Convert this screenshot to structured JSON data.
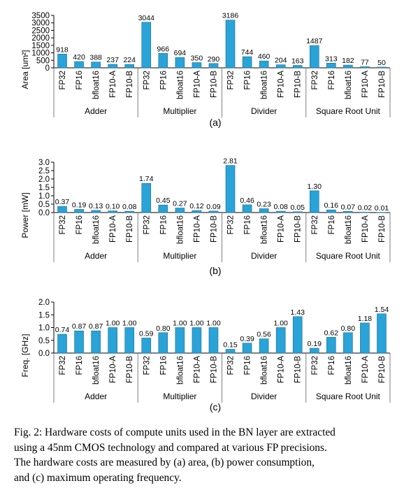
{
  "colors": {
    "bar": "#29a3d8",
    "bar_stroke": "#1a6f96",
    "axis": "#000000",
    "sep": "#7f7f7f"
  },
  "chart_data": [
    {
      "type": "bar",
      "panel_label": "(a)",
      "ylabel": "Area [um²]",
      "ylim": [
        0,
        3500
      ],
      "yticks": [
        0,
        500,
        1000,
        1500,
        2000,
        2500,
        3000,
        3500
      ],
      "groups": [
        "Adder",
        "Multiplier",
        "Divider",
        "Square Root Unit"
      ],
      "categories": [
        "FP32",
        "FP16",
        "bfloat16",
        "FP10-A",
        "FP10-B"
      ],
      "values": [
        [
          918,
          420,
          388,
          237,
          224
        ],
        [
          3044,
          966,
          694,
          350,
          290
        ],
        [
          3186,
          744,
          460,
          204,
          163
        ],
        [
          1487,
          313,
          182,
          77,
          50
        ]
      ],
      "labels": [
        [
          "918",
          "420",
          "388",
          "237",
          "224"
        ],
        [
          "3044",
          "966",
          "694",
          "350",
          "290"
        ],
        [
          "3186",
          "744",
          "460",
          "204",
          "163"
        ],
        [
          "1487",
          "313",
          "182",
          "77",
          "50"
        ]
      ]
    },
    {
      "type": "bar",
      "panel_label": "(b)",
      "ylabel": "Power [mW]",
      "ylim": [
        0,
        3.0
      ],
      "yticks": [
        "0.0",
        "0.5",
        "1.0",
        "1.5",
        "2.0",
        "2.5",
        "3.0"
      ],
      "groups": [
        "Adder",
        "Multiplier",
        "Divider",
        "Square Root Unit"
      ],
      "categories": [
        "FP32",
        "FP16",
        "bfloat16",
        "FP10-A",
        "FP10-B"
      ],
      "values": [
        [
          0.37,
          0.19,
          0.13,
          0.1,
          0.08
        ],
        [
          1.74,
          0.45,
          0.27,
          0.12,
          0.09
        ],
        [
          2.81,
          0.46,
          0.23,
          0.08,
          0.05
        ],
        [
          1.3,
          0.16,
          0.07,
          0.02,
          0.01
        ]
      ],
      "labels": [
        [
          "0.37",
          "0.19",
          "0.13",
          "0.10",
          "0.08"
        ],
        [
          "1.74",
          "0.45",
          "0.27",
          "0.12",
          "0.09"
        ],
        [
          "2.81",
          "0.46",
          "0.23",
          "0.08",
          "0.05"
        ],
        [
          "1.30",
          "0.16",
          "0.07",
          "0.02",
          "0.01"
        ]
      ]
    },
    {
      "type": "bar",
      "panel_label": "(c)",
      "ylabel": "Freq. [GHz]",
      "ylim": [
        0,
        2.0
      ],
      "yticks": [
        "0.0",
        "0.5",
        "1.0",
        "1.5",
        "2.0"
      ],
      "groups": [
        "Adder",
        "Multiplier",
        "Divider",
        "Square Root Unit"
      ],
      "categories": [
        "FP32",
        "FP16",
        "bfloat16",
        "FP10-A",
        "FP10-B"
      ],
      "values": [
        [
          0.74,
          0.87,
          0.87,
          1.0,
          1.0
        ],
        [
          0.59,
          0.8,
          1.0,
          1.0,
          1.0
        ],
        [
          0.15,
          0.39,
          0.56,
          1.0,
          1.43
        ],
        [
          0.19,
          0.62,
          0.8,
          1.18,
          1.54
        ]
      ],
      "labels": [
        [
          "0.74",
          "0.87",
          "0.87",
          "1.00",
          "1.00"
        ],
        [
          "0.59",
          "0.80",
          "1.00",
          "1.00",
          "1.00"
        ],
        [
          "0.15",
          "0.39",
          "0.56",
          "1.00",
          "1.43"
        ],
        [
          "0.19",
          "0.62",
          "0.80",
          "1.18",
          "1.54"
        ]
      ]
    }
  ],
  "caption": {
    "line1": "Fig. 2: Hardware costs of compute units used in the BN layer are extracted",
    "line2": "using a 45nm CMOS technology and compared at various FP precisions.",
    "line3": "The hardware costs are measured by (a) area, (b) power consumption,",
    "line4": "and (c) maximum operating frequency."
  }
}
